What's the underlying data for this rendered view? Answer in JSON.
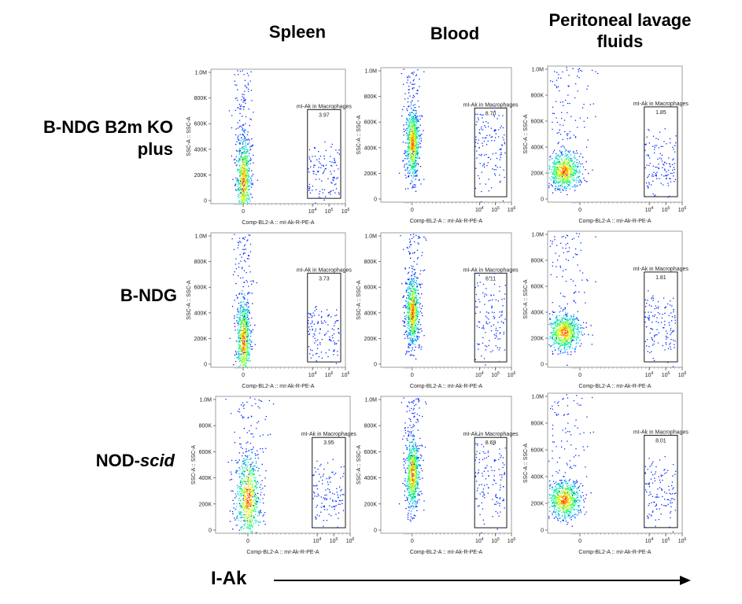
{
  "column_titles": [
    "Spleen",
    "Blood",
    "Peritoneal lavage fluids"
  ],
  "row_labels": [
    {
      "text": "B-NDG B2m KO plus",
      "line1": "B-NDG B2m KO",
      "line2": "plus"
    },
    {
      "text": "B-NDG"
    },
    {
      "text": "NOD-scid",
      "prefix": "NOD-",
      "italic": "scid"
    }
  ],
  "bottom_axis": {
    "label": "I-Ak",
    "arrow_direction": "right"
  },
  "colors": {
    "density_low": "#0000ff",
    "density_mid": "#00ff80",
    "density_high": "#ff0000",
    "gate": "#000000"
  },
  "chart_data": [
    {
      "type": "scatter",
      "row": "B-NDG B2m KO plus",
      "column": "Spleen",
      "xlabel": "Comp-BL2-A :: mI-Ak-R-PE-A",
      "ylabel": "SSC-A :: SSC-A",
      "x_scale": "biexponential",
      "x_ticks": [
        "0",
        "10^4",
        "10^5",
        "10^6"
      ],
      "y_ticks": [
        "0",
        "200K",
        "400K",
        "600K",
        "800K",
        "1.0M"
      ],
      "ylim": [
        0,
        1000000
      ],
      "gate": {
        "name": "mI-Ak in Macrophages",
        "percent": "3.97"
      },
      "population": {
        "center_ssc": 110000,
        "shape": "narrow vertical",
        "spread": "high"
      }
    },
    {
      "type": "scatter",
      "row": "B-NDG B2m KO plus",
      "column": "Blood",
      "xlabel": "Comp-BL2-A :: mI-Ak-R-PE-A",
      "ylabel": "SSC-A :: SSC-A",
      "x_scale": "biexponential",
      "x_ticks": [
        "0",
        "10^4",
        "10^5",
        "10^6"
      ],
      "y_ticks": [
        "0",
        "200K",
        "400K",
        "600K",
        "800K",
        "1.0M"
      ],
      "ylim": [
        0,
        1000000
      ],
      "gate": {
        "name": "mI-Ak in Macrophages",
        "percent": "8.70"
      },
      "population": {
        "center_ssc": 400000,
        "shape": "narrow vertical",
        "spread": "medium"
      }
    },
    {
      "type": "scatter",
      "row": "B-NDG B2m KO plus",
      "column": "Peritoneal lavage fluids",
      "xlabel": "Comp-BL2-A :: mI-Ak-R-PE-A",
      "ylabel": "SSC-A :: SSC-A",
      "x_scale": "biexponential",
      "x_ticks": [
        "0",
        "10^4",
        "10^5",
        "10^6"
      ],
      "y_ticks": [
        "0",
        "200K",
        "400K",
        "600K",
        "800K",
        "1.0M"
      ],
      "ylim": [
        0,
        1000000
      ],
      "gate": {
        "name": "mI-Ak in Macrophages",
        "percent": "1.85"
      },
      "population": {
        "center_ssc": 200000,
        "shape": "round",
        "spread": "medium"
      }
    },
    {
      "type": "scatter",
      "row": "B-NDG",
      "column": "Spleen",
      "xlabel": "Comp-BL2-A :: mI-Ak-R-PE-A",
      "ylabel": "SSC-A :: SSC-A",
      "x_scale": "biexponential",
      "x_ticks": [
        "0",
        "10^4",
        "10^5",
        "10^6"
      ],
      "y_ticks": [
        "0",
        "200K",
        "400K",
        "600K",
        "800K",
        "1.0M"
      ],
      "ylim": [
        0,
        1000000
      ],
      "gate": {
        "name": "mI-Ak in Macrophages",
        "percent": "3.73"
      },
      "population": {
        "center_ssc": 130000,
        "shape": "narrow vertical",
        "spread": "high"
      }
    },
    {
      "type": "scatter",
      "row": "B-NDG",
      "column": "Blood",
      "xlabel": "Comp-BL2-A :: mI-Ak-R-PE-A",
      "ylabel": "SSC-A :: SSC-A",
      "x_scale": "biexponential",
      "x_ticks": [
        "0",
        "10^4",
        "10^5",
        "10^6"
      ],
      "y_ticks": [
        "0",
        "200K",
        "400K",
        "600K",
        "800K",
        "1.0M"
      ],
      "ylim": [
        0,
        1000000
      ],
      "gate": {
        "name": "mI-Ak in Macrophages",
        "percent": "6.11"
      },
      "population": {
        "center_ssc": 380000,
        "shape": "narrow vertical",
        "spread": "medium"
      }
    },
    {
      "type": "scatter",
      "row": "B-NDG",
      "column": "Peritoneal lavage fluids",
      "xlabel": "Comp-BL2-A :: mI-Ak-R-PE-A",
      "ylabel": "SSC-A :: SSC-A",
      "x_scale": "biexponential",
      "x_ticks": [
        "0",
        "10^4",
        "10^5",
        "10^6"
      ],
      "y_ticks": [
        "0",
        "200K",
        "400K",
        "600K",
        "800K",
        "1.0M"
      ],
      "ylim": [
        0,
        1000000
      ],
      "gate": {
        "name": "mI-Ak in Macrophages",
        "percent": "1.81"
      },
      "population": {
        "center_ssc": 230000,
        "shape": "round",
        "spread": "medium"
      }
    },
    {
      "type": "scatter",
      "row": "NOD-scid",
      "column": "Spleen",
      "xlabel": "Comp-BL2-A :: mI-Ak-R-PE-A",
      "ylabel": "SSC-A :: SSC-A",
      "x_scale": "biexponential",
      "x_ticks": [
        "0",
        "10^4",
        "10^5",
        "10^6"
      ],
      "y_ticks": [
        "0",
        "200K",
        "400K",
        "600K",
        "800K",
        "1.0M"
      ],
      "ylim": [
        0,
        1000000
      ],
      "gate": {
        "name": "mI-Ak in Macrophages",
        "percent": "3.95"
      },
      "population": {
        "center_ssc": 200000,
        "shape": "broad vertical",
        "spread": "high"
      }
    },
    {
      "type": "scatter",
      "row": "NOD-scid",
      "column": "Blood",
      "xlabel": "Comp-BL2-A :: mI-Ak-R-PE-A",
      "ylabel": "SSC-A :: SSC-A",
      "x_scale": "biexponential",
      "x_ticks": [
        "0",
        "10^4",
        "10^5",
        "10^6"
      ],
      "y_ticks": [
        "0",
        "200K",
        "400K",
        "600K",
        "800K",
        "1.0M"
      ],
      "ylim": [
        0,
        1000000
      ],
      "gate": {
        "name": "mI-Ak in Macrophages",
        "percent": "8.69"
      },
      "population": {
        "center_ssc": 400000,
        "shape": "narrow vertical",
        "spread": "medium"
      }
    },
    {
      "type": "scatter",
      "row": "NOD-scid",
      "column": "Peritoneal lavage fluids",
      "xlabel": "Comp-BL2-A :: mI-Ak-R-PE-A",
      "ylabel": "SSC-A :: SSC-A",
      "x_scale": "biexponential",
      "x_ticks": [
        "0",
        "10^4",
        "10^5",
        "10^6"
      ],
      "y_ticks": [
        "0",
        "200K",
        "400K",
        "600K",
        "800K",
        "1.0M"
      ],
      "ylim": [
        0,
        1000000
      ],
      "gate": {
        "name": "mI-Ak in Macrophages",
        "percent": "8.01"
      },
      "population": {
        "center_ssc": 210000,
        "shape": "round",
        "spread": "wide"
      }
    }
  ]
}
